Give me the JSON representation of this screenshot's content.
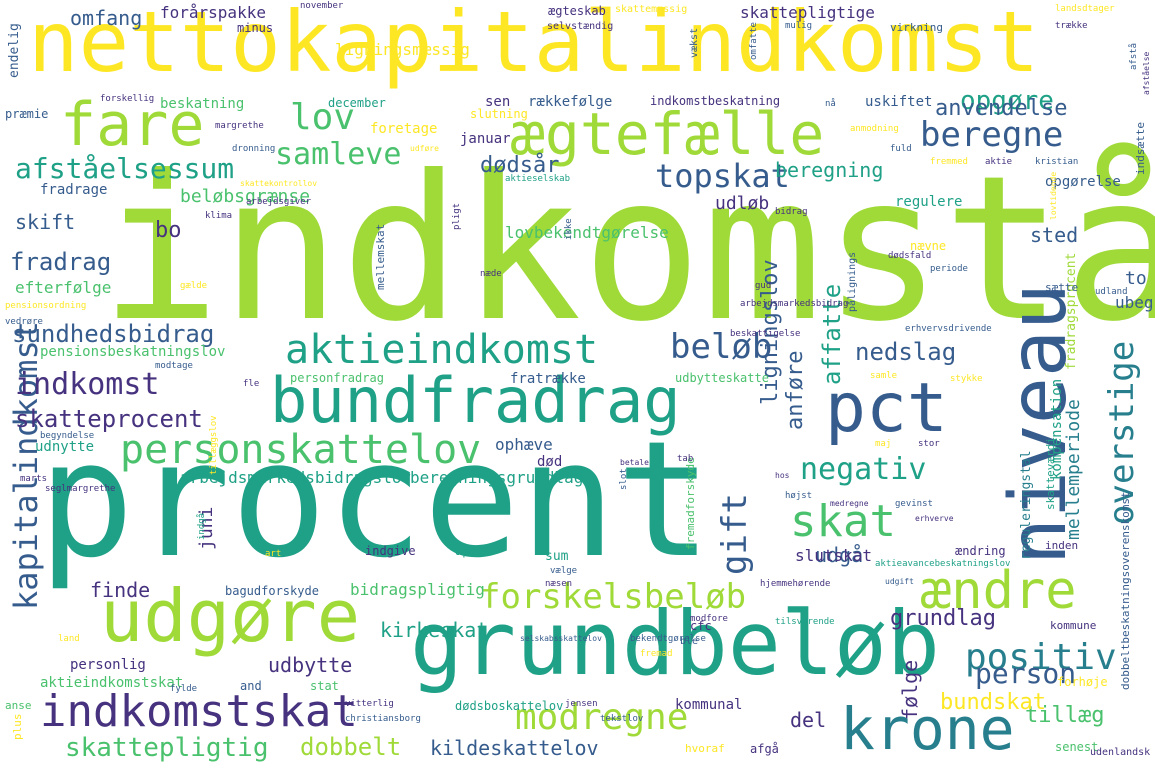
{
  "palette": {
    "yellow": "#fde725",
    "lime": "#a0da39",
    "green": "#4ac16d",
    "teal": "#1fa187",
    "blue": "#277f8e",
    "navy": "#365c8d",
    "indigo": "#46327e",
    "purple": "#440154"
  },
  "words": [
    "indkomstår",
    "procent",
    "nettokapitalindkomst",
    "grundbeløb",
    "bundfradrag",
    "udgøre",
    "fare",
    "ægtefælle",
    "niveau",
    "pct",
    "krone",
    "indkomstskat",
    "personskattelov",
    "aktieindkomst",
    "skat",
    "ændre",
    "forskelsbeløb",
    "modregne",
    "kapitalindkomst",
    "overstige",
    "positiv",
    "beregne",
    "topskat",
    "samleve",
    "lov",
    "afståelsessum",
    "negativ",
    "gift",
    "beløb",
    "indkomst",
    "skatteprocent",
    "sundhedsbidrag",
    "fradrag",
    "skift",
    "bo",
    "dødsår",
    "beløbsgrænse",
    "beregning",
    "udløb",
    "opgøre",
    "anvendelse",
    "omfang",
    "forårspakke",
    "ligningsmæssig",
    "skattepligtige",
    "person",
    "tillæg",
    "bundskat",
    "dobbelt",
    "skattepligtig",
    "kildeskattelov",
    "del",
    "følge",
    "grundlag",
    "kirkeskat",
    "udbytte",
    "nedslag",
    "affatte",
    "anføre",
    "ligningslov",
    "sted",
    "to",
    "udgå",
    "mellemperiode",
    "finde",
    "slutskat",
    "juni",
    "bidragspligtig",
    "efterfølge",
    "lovbekendtgørelse",
    "arbejdsmarkedsbidragslov",
    "beregningsgrundlag",
    "fratrække",
    "ophæve",
    "personfradrag",
    "død",
    "pensionsbeskatningslov",
    "udnytte",
    "personlig",
    "aktieindkomstskat",
    "kommunal",
    "dødsboskattelov",
    "regulere",
    "opgørelse",
    "fradrage",
    "beskatning",
    "december",
    "sen",
    "rækkefølge",
    "indkomstbeskatning",
    "uskiftet",
    "foretage",
    "januar",
    "kompensation",
    "reguleringstal",
    "fradragsprocent",
    "stat",
    "and",
    "sum",
    "april",
    "indgive",
    "bagudforskyde",
    "kommune",
    "ændring",
    "forhøje",
    "senest",
    "hvoraf",
    "afgå",
    "cfc",
    "ble",
    "nævne",
    "inden",
    "sætte",
    "endelig",
    "minus",
    "præmie",
    "slutning",
    "udbytteskatte",
    "fremadforskyde",
    "dobbeltbeskatningsoverenskomst",
    "skatteværdi",
    "udenlandsk",
    "mellemskat",
    "indsætte",
    "pligt",
    "ægteskab",
    "skattemæssig",
    "selvstændig",
    "november",
    "landsdtager",
    "vækst",
    "omfatte",
    "mulig",
    "virkning",
    "trække",
    "afstå",
    "afståelse",
    "forskellig",
    "margrethe",
    "dronning",
    "udføre",
    "anmodning",
    "fuld",
    "fremmed",
    "aktie",
    "kristian",
    "skattekontrollov",
    "klima",
    "arbejdsgiver",
    "bidrag",
    "lovtidende",
    "dødsfald",
    "periode",
    "gud",
    "udland",
    "pålignings",
    "erhvervsdrivende",
    "samle",
    "stykke",
    "modtage",
    "begyndelse",
    "fle",
    "marts",
    "seglmargrethe",
    "betale",
    "tab",
    "hos",
    "slot",
    "højst",
    "medregne",
    "gevinst",
    "erhverve",
    "maj",
    "stor",
    "aktieavancebeskatningslov",
    "udgift",
    "hjemmehørende",
    "vælge",
    "art",
    "tilsvarende",
    "selskabsskattelov",
    "bekendtgørelse",
    "land",
    "jensen",
    "tekstlov",
    "vitterlig",
    "christiansborg",
    "fylde",
    "anse",
    "plus",
    "gælde",
    "pensionsordning",
    "vedrøre",
    "næde",
    "aktieselskab",
    "nå",
    "næsen",
    "modfore",
    "tillæggslov",
    "indgå",
    "beskattigelse",
    "ikke",
    "arbejdsmarkedsbidrag",
    "fremad",
    "ubegrænset",
    "to"
  ]
}
